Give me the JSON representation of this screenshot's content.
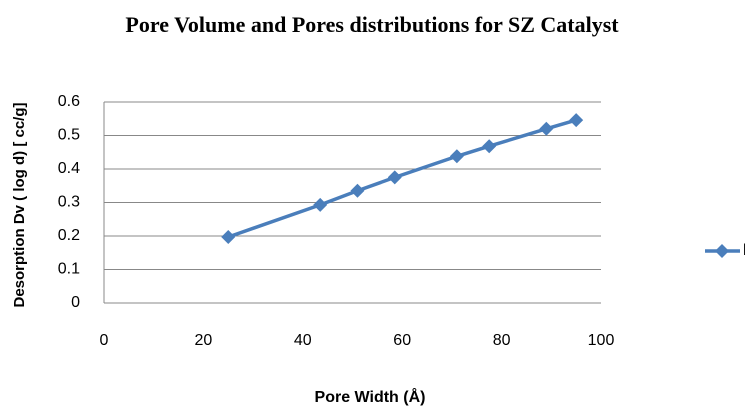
{
  "chart_data": {
    "type": "line",
    "title": "Pore Volume and Pores distributions  for SZ Catalyst",
    "xlabel": "Pore Width (Å)",
    "ylabel": "Desorption Dv ( log  d) [ cc/g]",
    "x": [
      25,
      43.5,
      51,
      58.5,
      71,
      77.5,
      89,
      95
    ],
    "series": [
      {
        "name": "log B",
        "color": "#4a7ebb",
        "values": [
          0.197,
          0.293,
          0.335,
          0.375,
          0.438,
          0.468,
          0.52,
          0.546
        ]
      }
    ],
    "xlim": [
      0,
      100
    ],
    "xticks": [
      0,
      20,
      40,
      60,
      80,
      100
    ],
    "ylim": [
      0,
      0.6
    ],
    "yticks": [
      0,
      0.1,
      0.2,
      0.3,
      0.4,
      0.5,
      0.6
    ],
    "grid": true,
    "legend": "right"
  }
}
